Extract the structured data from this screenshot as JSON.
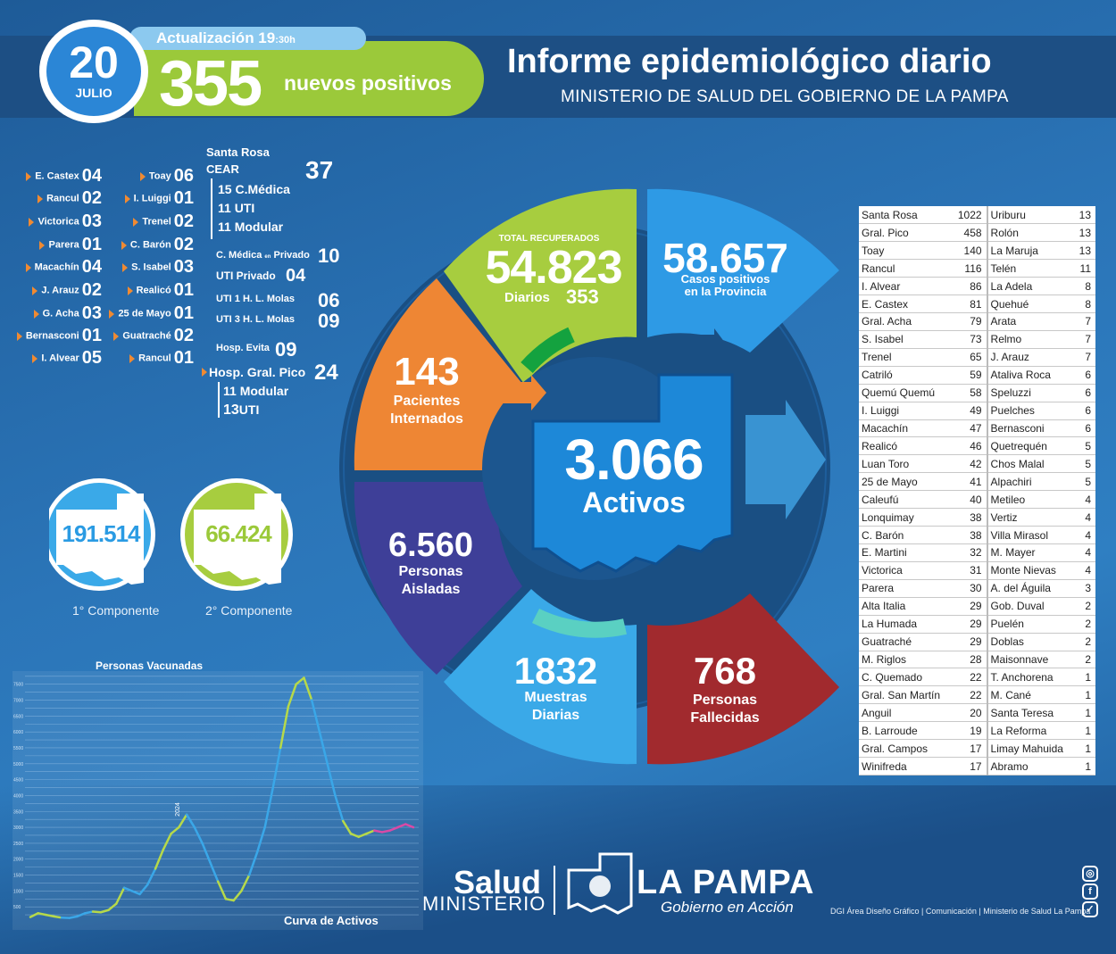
{
  "date": {
    "day": "20",
    "month": "JULIO"
  },
  "update": {
    "label": "Actualización 19",
    "time_suffix": ":30h"
  },
  "new_positives": {
    "value": "355",
    "label": "nuevos positivos"
  },
  "title": "Informe epidemiológico diario",
  "subtitle": "MINISTERIO DE SALUD DEL GOBIERNO DE LA PAMPA",
  "locations_left": [
    {
      "name": "E. Castex",
      "value": "04"
    },
    {
      "name": "Rancul",
      "value": "02"
    },
    {
      "name": "Victorica",
      "value": "03"
    },
    {
      "name": "Parera",
      "value": "01"
    },
    {
      "name": "Macachín",
      "value": "04"
    },
    {
      "name": "J. Arauz",
      "value": "02"
    },
    {
      "name": "G. Acha",
      "value": "03"
    },
    {
      "name": "Bernasconi",
      "value": "01"
    },
    {
      "name": "I. Alvear",
      "value": "05"
    }
  ],
  "locations_mid": [
    {
      "name": "Toay",
      "value": "06"
    },
    {
      "name": "I. Luiggi",
      "value": "01"
    },
    {
      "name": "Trenel",
      "value": "02"
    },
    {
      "name": "C. Barón",
      "value": "02"
    },
    {
      "name": "S. Isabel",
      "value": "03"
    },
    {
      "name": "Realicó",
      "value": "01"
    },
    {
      "name": "25 de Mayo",
      "value": "01"
    },
    {
      "name": "Guatraché",
      "value": "02"
    },
    {
      "name": "Rancul",
      "value": "01"
    }
  ],
  "santa_rosa": {
    "title": "Santa Rosa",
    "cear_label": "CEAR",
    "cear_value": "37",
    "cear_items": [
      "15 C.Médica",
      "11 UTI",
      "11 Modular"
    ],
    "cmedica_privado_label": "C. Médica",
    "cmedica_privado_small": "en",
    "cmedica_privado_label2": "Privado",
    "cmedica_privado_value": "10",
    "uti_privado_label": "UTI Privado",
    "uti_privado_value": "04",
    "uti1_label": "UTI 1 H. L. Molas",
    "uti1_value": "06",
    "uti3_label": "UTI 3 H. L. Molas",
    "uti3_value": "09",
    "evita_label": "Hosp. Evita",
    "evita_value": "09",
    "pico_label": "Hosp. Gral. Pico",
    "pico_value": "24",
    "pico_items": [
      {
        "num": "11",
        "label": "Modular"
      },
      {
        "num": "13",
        "label": "UTI"
      }
    ]
  },
  "wheel": {
    "recovered": {
      "label": "TOTAL RECUPERADOS",
      "value": "54.823",
      "daily_label": "Diarios",
      "daily_value": "353"
    },
    "positives": {
      "value": "58.657",
      "label1": "Casos positivos",
      "label2": "en la Provincia"
    },
    "hospitalized": {
      "value": "143",
      "label1": "Pacientes",
      "label2": "Internados"
    },
    "isolated": {
      "value": "6.560",
      "label1": "Personas",
      "label2": "Aisladas"
    },
    "samples": {
      "value": "1832",
      "label1": "Muestras",
      "label2": "Diarias"
    },
    "deceased": {
      "value": "768",
      "label1": "Personas",
      "label2": "Fallecidas"
    },
    "active": {
      "value": "3.066",
      "label": "Activos"
    }
  },
  "vaccination": {
    "first": {
      "value": "191.514",
      "label": "1° Componente"
    },
    "second": {
      "value": "66.424",
      "label": "2° Componente"
    }
  },
  "chart_data": {
    "type": "line",
    "title": "Personas Vacunadas",
    "footer_label": "Curva de Activos",
    "y_ticks": [
      "500",
      "1000",
      "1500",
      "2000",
      "2500",
      "3000",
      "3500",
      "4000",
      "4500",
      "5000",
      "5500",
      "6000",
      "6500",
      "7000",
      "7500"
    ],
    "annotation": "2024",
    "ylim": [
      0,
      7800
    ],
    "series": [
      {
        "values": [
          180,
          300,
          250,
          200,
          160,
          150,
          200,
          300,
          350,
          330,
          400,
          600,
          1100,
          1000,
          900,
          1200,
          1700,
          2300,
          2800,
          3000,
          3400,
          3000,
          2500,
          1900,
          1300,
          750,
          700,
          1000,
          1500,
          2200,
          3000,
          4200,
          5500,
          6800,
          7500,
          7700,
          7000,
          6000,
          5000,
          4000,
          3200,
          2800,
          2700,
          2800,
          2900,
          2850,
          2900,
          3000,
          3100,
          3000
        ]
      },
      {
        "values": []
      }
    ],
    "colors": {
      "green": "#b6d94a",
      "blue": "#3aa7e8",
      "pink": "#d94aa6"
    }
  },
  "municipalities": [
    [
      "Santa Rosa",
      "1022",
      "Uriburu",
      "13"
    ],
    [
      "Gral. Pico",
      "458",
      "Rolón",
      "13"
    ],
    [
      "Toay",
      "140",
      "La Maruja",
      "13"
    ],
    [
      "Rancul",
      "116",
      "Telén",
      "11"
    ],
    [
      "I. Alvear",
      "86",
      "La Adela",
      "8"
    ],
    [
      "E. Castex",
      "81",
      "Quehué",
      "8"
    ],
    [
      "Gral. Acha",
      "79",
      "Arata",
      "7"
    ],
    [
      "S. Isabel",
      "73",
      "Relmo",
      "7"
    ],
    [
      "Trenel",
      "65",
      "J. Arauz",
      "7"
    ],
    [
      "Catriló",
      "59",
      "Ataliva Roca",
      "6"
    ],
    [
      "Quemú Quemú",
      "58",
      "Speluzzi",
      "6"
    ],
    [
      "I. Luiggi",
      "49",
      "Puelches",
      "6"
    ],
    [
      "Macachín",
      "47",
      "Bernasconi",
      "6"
    ],
    [
      "Realicó",
      "46",
      "Quetrequén",
      "5"
    ],
    [
      "Luan Toro",
      "42",
      "Chos Malal",
      "5"
    ],
    [
      "25 de Mayo",
      "41",
      "Alpachiri",
      "5"
    ],
    [
      "Caleufú",
      "40",
      "Metileo",
      "4"
    ],
    [
      "Lonquimay",
      "38",
      "Vertiz",
      "4"
    ],
    [
      "C. Barón",
      "38",
      "Villa Mirasol",
      "4"
    ],
    [
      "E. Martini",
      "32",
      "M. Mayer",
      "4"
    ],
    [
      "Victorica",
      "31",
      "Monte Nievas",
      "4"
    ],
    [
      "Parera",
      "30",
      "A. del Águila",
      "3"
    ],
    [
      "Alta Italia",
      "29",
      "Gob. Duval",
      "2"
    ],
    [
      "La Humada",
      "29",
      "Puelén",
      "2"
    ],
    [
      "Guatraché",
      "29",
      "Doblas",
      "2"
    ],
    [
      "M. Riglos",
      "28",
      "Maisonnave",
      "2"
    ],
    [
      "C. Quemado",
      "22",
      "T. Anchorena",
      "1"
    ],
    [
      "Gral. San Martín",
      "22",
      "M. Cané",
      "1"
    ],
    [
      "Anguil",
      "20",
      "Santa Teresa",
      "1"
    ],
    [
      "B. Larroude",
      "19",
      "La Reforma",
      "1"
    ],
    [
      "Gral. Campos",
      "17",
      "Limay Mahuida",
      "1"
    ],
    [
      "Winifreda",
      "17",
      "Abramo",
      "1"
    ]
  ],
  "footer": {
    "salud": "Salud",
    "ministerio": "MINISTERIO",
    "la_pampa": "LA PAMPA",
    "gobierno": "Gobierno en Acción",
    "credit": "DGI Área Diseño Gráfico  | Comunicación | Ministerio de Salud La Pampa",
    "icons": [
      "instagram-icon",
      "facebook-icon",
      "twitter-icon"
    ]
  }
}
